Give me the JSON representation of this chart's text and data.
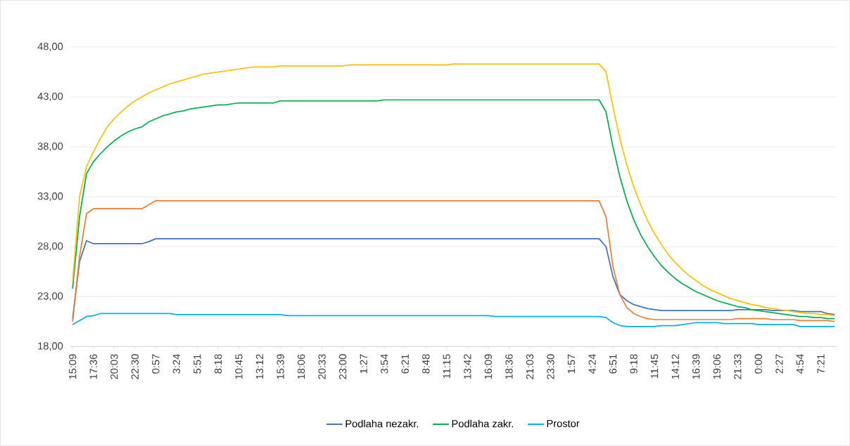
{
  "chart_data": {
    "type": "line",
    "grid": "y",
    "legend": "bottom",
    "ylim": [
      18,
      48
    ],
    "yticks": [
      {
        "value": 18,
        "label": "18,00"
      },
      {
        "value": 23,
        "label": "23,00"
      },
      {
        "value": 28,
        "label": "28,00"
      },
      {
        "value": 33,
        "label": "33,00"
      },
      {
        "value": 38,
        "label": "38,00"
      },
      {
        "value": 43,
        "label": "43,00"
      },
      {
        "value": 48,
        "label": "48,00"
      }
    ],
    "categories": [
      "15:09",
      null,
      null,
      "17:36",
      null,
      null,
      "20:03",
      null,
      null,
      "22:30",
      null,
      null,
      "0:57",
      null,
      null,
      "3:24",
      null,
      null,
      "5:51",
      null,
      null,
      "8:18",
      null,
      null,
      "10:45",
      null,
      null,
      "13:12",
      null,
      null,
      "15:39",
      null,
      null,
      "18:06",
      null,
      null,
      "20:33",
      null,
      null,
      "23:00",
      null,
      null,
      "1:27",
      null,
      null,
      "3:54",
      null,
      null,
      "6:21",
      null,
      null,
      "8:48",
      null,
      null,
      "11:15",
      null,
      null,
      "13:42",
      null,
      null,
      "16:09",
      null,
      null,
      "18:36",
      null,
      null,
      "21:03",
      null,
      null,
      "23:30",
      null,
      null,
      "1:57",
      null,
      null,
      "4:24",
      null,
      null,
      "6:51",
      null,
      null,
      "9:18",
      null,
      null,
      "11:45",
      null,
      null,
      "14:12",
      null,
      null,
      "16:39",
      null,
      null,
      "19:06",
      null,
      null,
      "21:33",
      null,
      null,
      "0:00",
      null,
      null,
      "2:27",
      null,
      null,
      "4:54",
      null,
      null,
      "7:21",
      null,
      null
    ],
    "series": [
      {
        "name": "Podlaha nezakr.",
        "color": "#4472c4",
        "values": [
          20.8,
          26.5,
          28.6,
          28.3,
          28.3,
          28.3,
          28.3,
          28.3,
          28.3,
          28.3,
          28.3,
          28.5,
          28.8,
          28.8,
          28.8,
          28.8,
          28.8,
          28.8,
          28.8,
          28.8,
          28.8,
          28.8,
          28.8,
          28.8,
          28.8,
          28.8,
          28.8,
          28.8,
          28.8,
          28.8,
          28.8,
          28.8,
          28.8,
          28.8,
          28.8,
          28.8,
          28.8,
          28.8,
          28.8,
          28.8,
          28.8,
          28.8,
          28.8,
          28.8,
          28.8,
          28.8,
          28.8,
          28.8,
          28.8,
          28.8,
          28.8,
          28.8,
          28.8,
          28.8,
          28.8,
          28.8,
          28.8,
          28.8,
          28.8,
          28.8,
          28.8,
          28.8,
          28.8,
          28.8,
          28.8,
          28.8,
          28.8,
          28.8,
          28.8,
          28.8,
          28.8,
          28.8,
          28.8,
          28.8,
          28.8,
          28.8,
          28.8,
          28.0,
          25.0,
          23.2,
          22.6,
          22.2,
          22.0,
          21.8,
          21.7,
          21.6,
          21.6,
          21.6,
          21.6,
          21.6,
          21.6,
          21.6,
          21.6,
          21.6,
          21.6,
          21.6,
          21.7,
          21.7,
          21.7,
          21.7,
          21.7,
          21.6,
          21.6,
          21.6,
          21.6,
          21.5,
          21.5,
          21.5,
          21.5,
          21.3,
          21.2
        ]
      },
      {
        "color": "#ed7d31",
        "values": [
          20.5,
          27,
          31.3,
          31.8,
          31.8,
          31.8,
          31.8,
          31.8,
          31.8,
          31.8,
          31.8,
          32.2,
          32.6,
          32.6,
          32.6,
          32.6,
          32.6,
          32.6,
          32.6,
          32.6,
          32.6,
          32.6,
          32.6,
          32.6,
          32.6,
          32.6,
          32.6,
          32.6,
          32.6,
          32.6,
          32.6,
          32.6,
          32.6,
          32.6,
          32.6,
          32.6,
          32.6,
          32.6,
          32.6,
          32.6,
          32.6,
          32.6,
          32.6,
          32.6,
          32.6,
          32.6,
          32.6,
          32.6,
          32.6,
          32.6,
          32.6,
          32.6,
          32.6,
          32.6,
          32.6,
          32.6,
          32.6,
          32.6,
          32.6,
          32.6,
          32.6,
          32.6,
          32.6,
          32.6,
          32.6,
          32.6,
          32.6,
          32.6,
          32.6,
          32.6,
          32.6,
          32.6,
          32.6,
          32.6,
          32.6,
          32.6,
          32.6,
          31.0,
          26.0,
          23.2,
          21.9,
          21.3,
          21.0,
          20.8,
          20.7,
          20.7,
          20.7,
          20.7,
          20.7,
          20.7,
          20.7,
          20.7,
          20.7,
          20.7,
          20.7,
          20.7,
          20.8,
          20.8,
          20.8,
          20.8,
          20.8,
          20.7,
          20.7,
          20.7,
          20.7,
          20.6,
          20.6,
          20.6,
          20.6,
          20.6,
          20.5
        ]
      },
      {
        "name": "Podlaha zakr.",
        "color": "#00b050",
        "values": [
          23.8,
          31,
          35.3,
          36.5,
          37.3,
          38,
          38.6,
          39.1,
          39.5,
          39.8,
          40.0,
          40.5,
          40.8,
          41.1,
          41.3,
          41.5,
          41.6,
          41.8,
          41.9,
          42.0,
          42.1,
          42.2,
          42.2,
          42.3,
          42.4,
          42.4,
          42.4,
          42.4,
          42.4,
          42.4,
          42.6,
          42.6,
          42.6,
          42.6,
          42.6,
          42.6,
          42.6,
          42.6,
          42.6,
          42.6,
          42.6,
          42.6,
          42.6,
          42.6,
          42.6,
          42.7,
          42.7,
          42.7,
          42.7,
          42.7,
          42.7,
          42.7,
          42.7,
          42.7,
          42.7,
          42.7,
          42.7,
          42.7,
          42.7,
          42.7,
          42.7,
          42.7,
          42.7,
          42.7,
          42.7,
          42.7,
          42.7,
          42.7,
          42.7,
          42.7,
          42.7,
          42.7,
          42.7,
          42.7,
          42.7,
          42.7,
          42.7,
          41.5,
          38,
          35,
          32.6,
          30.7,
          29.2,
          28.0,
          27.0,
          26.1,
          25.4,
          24.8,
          24.3,
          23.9,
          23.5,
          23.2,
          22.9,
          22.6,
          22.4,
          22.2,
          22.0,
          21.9,
          21.7,
          21.6,
          21.5,
          21.4,
          21.3,
          21.2,
          21.1,
          21.0,
          21.0,
          20.9,
          20.9,
          20.8,
          20.8
        ]
      },
      {
        "color": "#ffc000",
        "values": [
          24.5,
          33,
          36,
          37.5,
          38.8,
          40,
          40.8,
          41.5,
          42.1,
          42.6,
          43.0,
          43.4,
          43.7,
          44.0,
          44.3,
          44.5,
          44.7,
          44.9,
          45.1,
          45.3,
          45.4,
          45.5,
          45.6,
          45.7,
          45.8,
          45.9,
          46.0,
          46.0,
          46.0,
          46.0,
          46.1,
          46.1,
          46.1,
          46.1,
          46.1,
          46.1,
          46.1,
          46.1,
          46.1,
          46.1,
          46.2,
          46.2,
          46.2,
          46.2,
          46.2,
          46.2,
          46.2,
          46.2,
          46.2,
          46.2,
          46.2,
          46.2,
          46.2,
          46.2,
          46.2,
          46.3,
          46.3,
          46.3,
          46.3,
          46.3,
          46.3,
          46.3,
          46.3,
          46.3,
          46.3,
          46.3,
          46.3,
          46.3,
          46.3,
          46.3,
          46.3,
          46.3,
          46.3,
          46.3,
          46.3,
          46.3,
          46.3,
          45.5,
          42,
          38.8,
          36.2,
          34.0,
          32.2,
          30.6,
          29.3,
          28.2,
          27.2,
          26.4,
          25.7,
          25.1,
          24.6,
          24.1,
          23.7,
          23.4,
          23.1,
          22.8,
          22.6,
          22.4,
          22.2,
          22.1,
          21.9,
          21.8,
          21.7,
          21.6,
          21.5,
          21.4,
          21.3,
          21.3,
          21.2,
          21.2,
          21.1
        ]
      },
      {
        "name": "Prostor",
        "color": "#00b0f0",
        "values": [
          20.2,
          20.6,
          21.0,
          21.1,
          21.3,
          21.3,
          21.3,
          21.3,
          21.3,
          21.3,
          21.3,
          21.3,
          21.3,
          21.3,
          21.3,
          21.2,
          21.2,
          21.2,
          21.2,
          21.2,
          21.2,
          21.2,
          21.2,
          21.2,
          21.2,
          21.2,
          21.2,
          21.2,
          21.2,
          21.2,
          21.2,
          21.1,
          21.1,
          21.1,
          21.1,
          21.1,
          21.1,
          21.1,
          21.1,
          21.1,
          21.1,
          21.1,
          21.1,
          21.1,
          21.1,
          21.1,
          21.1,
          21.1,
          21.1,
          21.1,
          21.1,
          21.1,
          21.1,
          21.1,
          21.1,
          21.1,
          21.1,
          21.1,
          21.1,
          21.1,
          21.1,
          21.0,
          21.0,
          21.0,
          21.0,
          21.0,
          21.0,
          21.0,
          21.0,
          21.0,
          21.0,
          21.0,
          21.0,
          21.0,
          21.0,
          21.0,
          21.0,
          20.9,
          20.4,
          20.1,
          20.0,
          20.0,
          20.0,
          20.0,
          20.0,
          20.1,
          20.1,
          20.1,
          20.2,
          20.3,
          20.4,
          20.4,
          20.4,
          20.4,
          20.3,
          20.3,
          20.3,
          20.3,
          20.3,
          20.2,
          20.2,
          20.2,
          20.2,
          20.2,
          20.2,
          20.0,
          20.0,
          20.0,
          20.0,
          20.0,
          20.0
        ]
      }
    ]
  }
}
